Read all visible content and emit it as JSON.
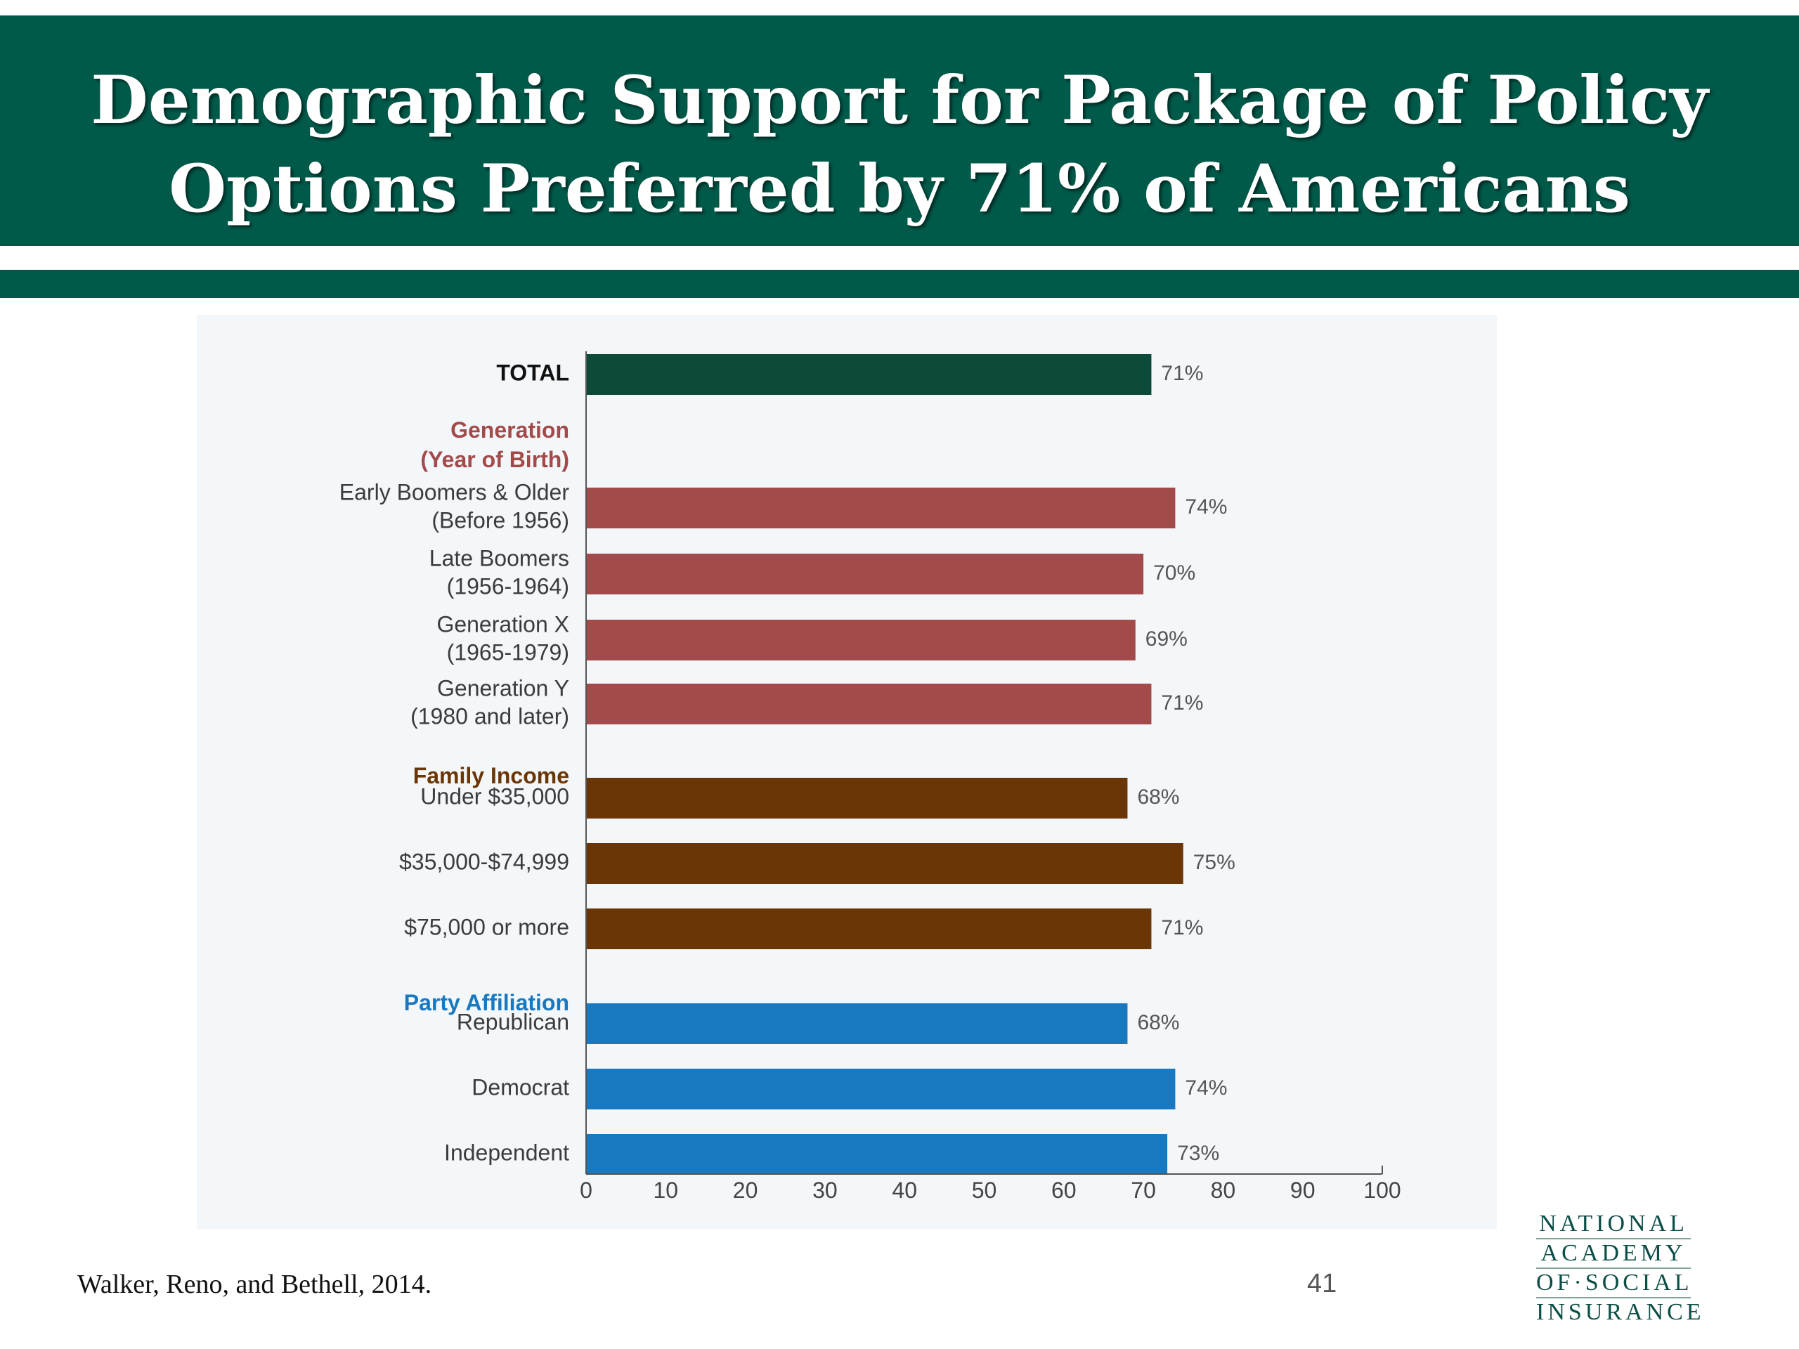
{
  "slide": {
    "title_lines": [
      "Demographic Support for Package of Policy",
      "Options Preferred by 71% of Americans"
    ],
    "footnote": "Walker, Reno, and Bethell, 2014.",
    "page_number": "41",
    "logo_lines": [
      "NATIONAL",
      "ACADEMY",
      "OF·SOCIAL",
      "INSURANCE"
    ]
  },
  "colors": {
    "brand_green": "#005a4a",
    "total": "#0d4a3a",
    "generation": "#a34a4a",
    "income": "#6b3606",
    "party": "#1878c0"
  },
  "chart_data": {
    "type": "bar",
    "orientation": "horizontal",
    "title": "",
    "xlabel": "",
    "ylabel": "",
    "xlim": [
      0,
      100
    ],
    "xticks": [
      0,
      10,
      20,
      30,
      40,
      50,
      60,
      70,
      80,
      90,
      100
    ],
    "value_suffix": "%",
    "grid": false,
    "rows": [
      {
        "kind": "bar",
        "label": [
          "TOTAL"
        ],
        "value": 71,
        "group": "total"
      },
      {
        "kind": "header",
        "label": [
          "Generation",
          "(Year of Birth)"
        ],
        "group": "generation"
      },
      {
        "kind": "bar",
        "label": [
          "Early Boomers & Older",
          "(Before 1956)"
        ],
        "value": 74,
        "group": "generation"
      },
      {
        "kind": "bar",
        "label": [
          "Late Boomers",
          "(1956-1964)"
        ],
        "value": 70,
        "group": "generation"
      },
      {
        "kind": "bar",
        "label": [
          "Generation X",
          "(1965-1979)"
        ],
        "value": 69,
        "group": "generation"
      },
      {
        "kind": "bar",
        "label": [
          "Generation Y",
          "(1980 and later)"
        ],
        "value": 71,
        "group": "generation"
      },
      {
        "kind": "header",
        "label": [
          "Family Income"
        ],
        "group": "income"
      },
      {
        "kind": "bar",
        "label": [
          "Under $35,000"
        ],
        "value": 68,
        "group": "income"
      },
      {
        "kind": "bar",
        "label": [
          "$35,000-$74,999"
        ],
        "value": 75,
        "group": "income"
      },
      {
        "kind": "bar",
        "label": [
          "$75,000 or more"
        ],
        "value": 71,
        "group": "income"
      },
      {
        "kind": "header",
        "label": [
          "Party Affiliation"
        ],
        "group": "party"
      },
      {
        "kind": "bar",
        "label": [
          "Republican"
        ],
        "value": 68,
        "group": "party"
      },
      {
        "kind": "bar",
        "label": [
          "Democrat"
        ],
        "value": 74,
        "group": "party"
      },
      {
        "kind": "bar",
        "label": [
          "Independent"
        ],
        "value": 73,
        "group": "party"
      }
    ]
  }
}
